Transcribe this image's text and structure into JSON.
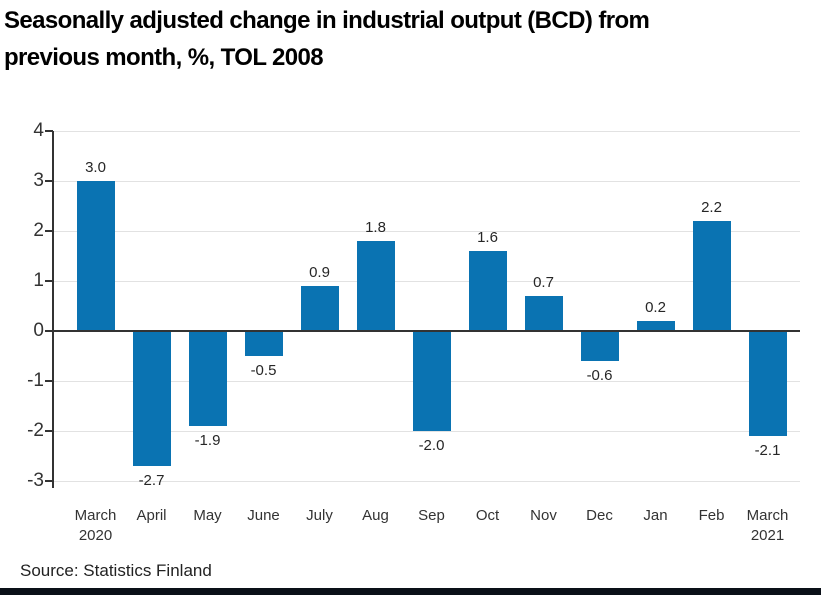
{
  "title": {
    "line1": "Seasonally adjusted change in industrial output (BCD) from",
    "line2": "previous month, %, TOL 2008"
  },
  "footer": {
    "source": "Source: Statistics Finland"
  },
  "colors": {
    "bar": "#0a73b2",
    "axis": "#333333",
    "grid": "#e2e2e2",
    "value_label": "#262626",
    "footer_rule": "#0a1018"
  },
  "chart_data": {
    "type": "bar",
    "title": "Seasonally adjusted change in industrial output (BCD) from previous month, %, TOL 2008",
    "categories": [
      "March\n2020",
      "April",
      "May",
      "June",
      "July",
      "Aug",
      "Sep",
      "Oct",
      "Nov",
      "Dec",
      "Jan",
      "Feb",
      "March\n2021"
    ],
    "values": [
      3.0,
      -2.7,
      -1.9,
      -0.5,
      0.9,
      1.8,
      -2.0,
      1.6,
      0.7,
      -0.6,
      0.2,
      2.2,
      -2.1
    ],
    "value_labels": [
      "3.0",
      "-2.7",
      "-1.9",
      "-0.5",
      "0.9",
      "1.8",
      "-2.0",
      "1.6",
      "0.7",
      "-0.6",
      "0.2",
      "2.2",
      "-2.1"
    ],
    "xlabel": "",
    "ylabel": "",
    "ylim": [
      -3,
      4
    ],
    "yticks": [
      4,
      3,
      2,
      1,
      0,
      -1,
      -2,
      -3
    ],
    "grid": true,
    "legend": false,
    "source": "Source: Statistics Finland"
  }
}
